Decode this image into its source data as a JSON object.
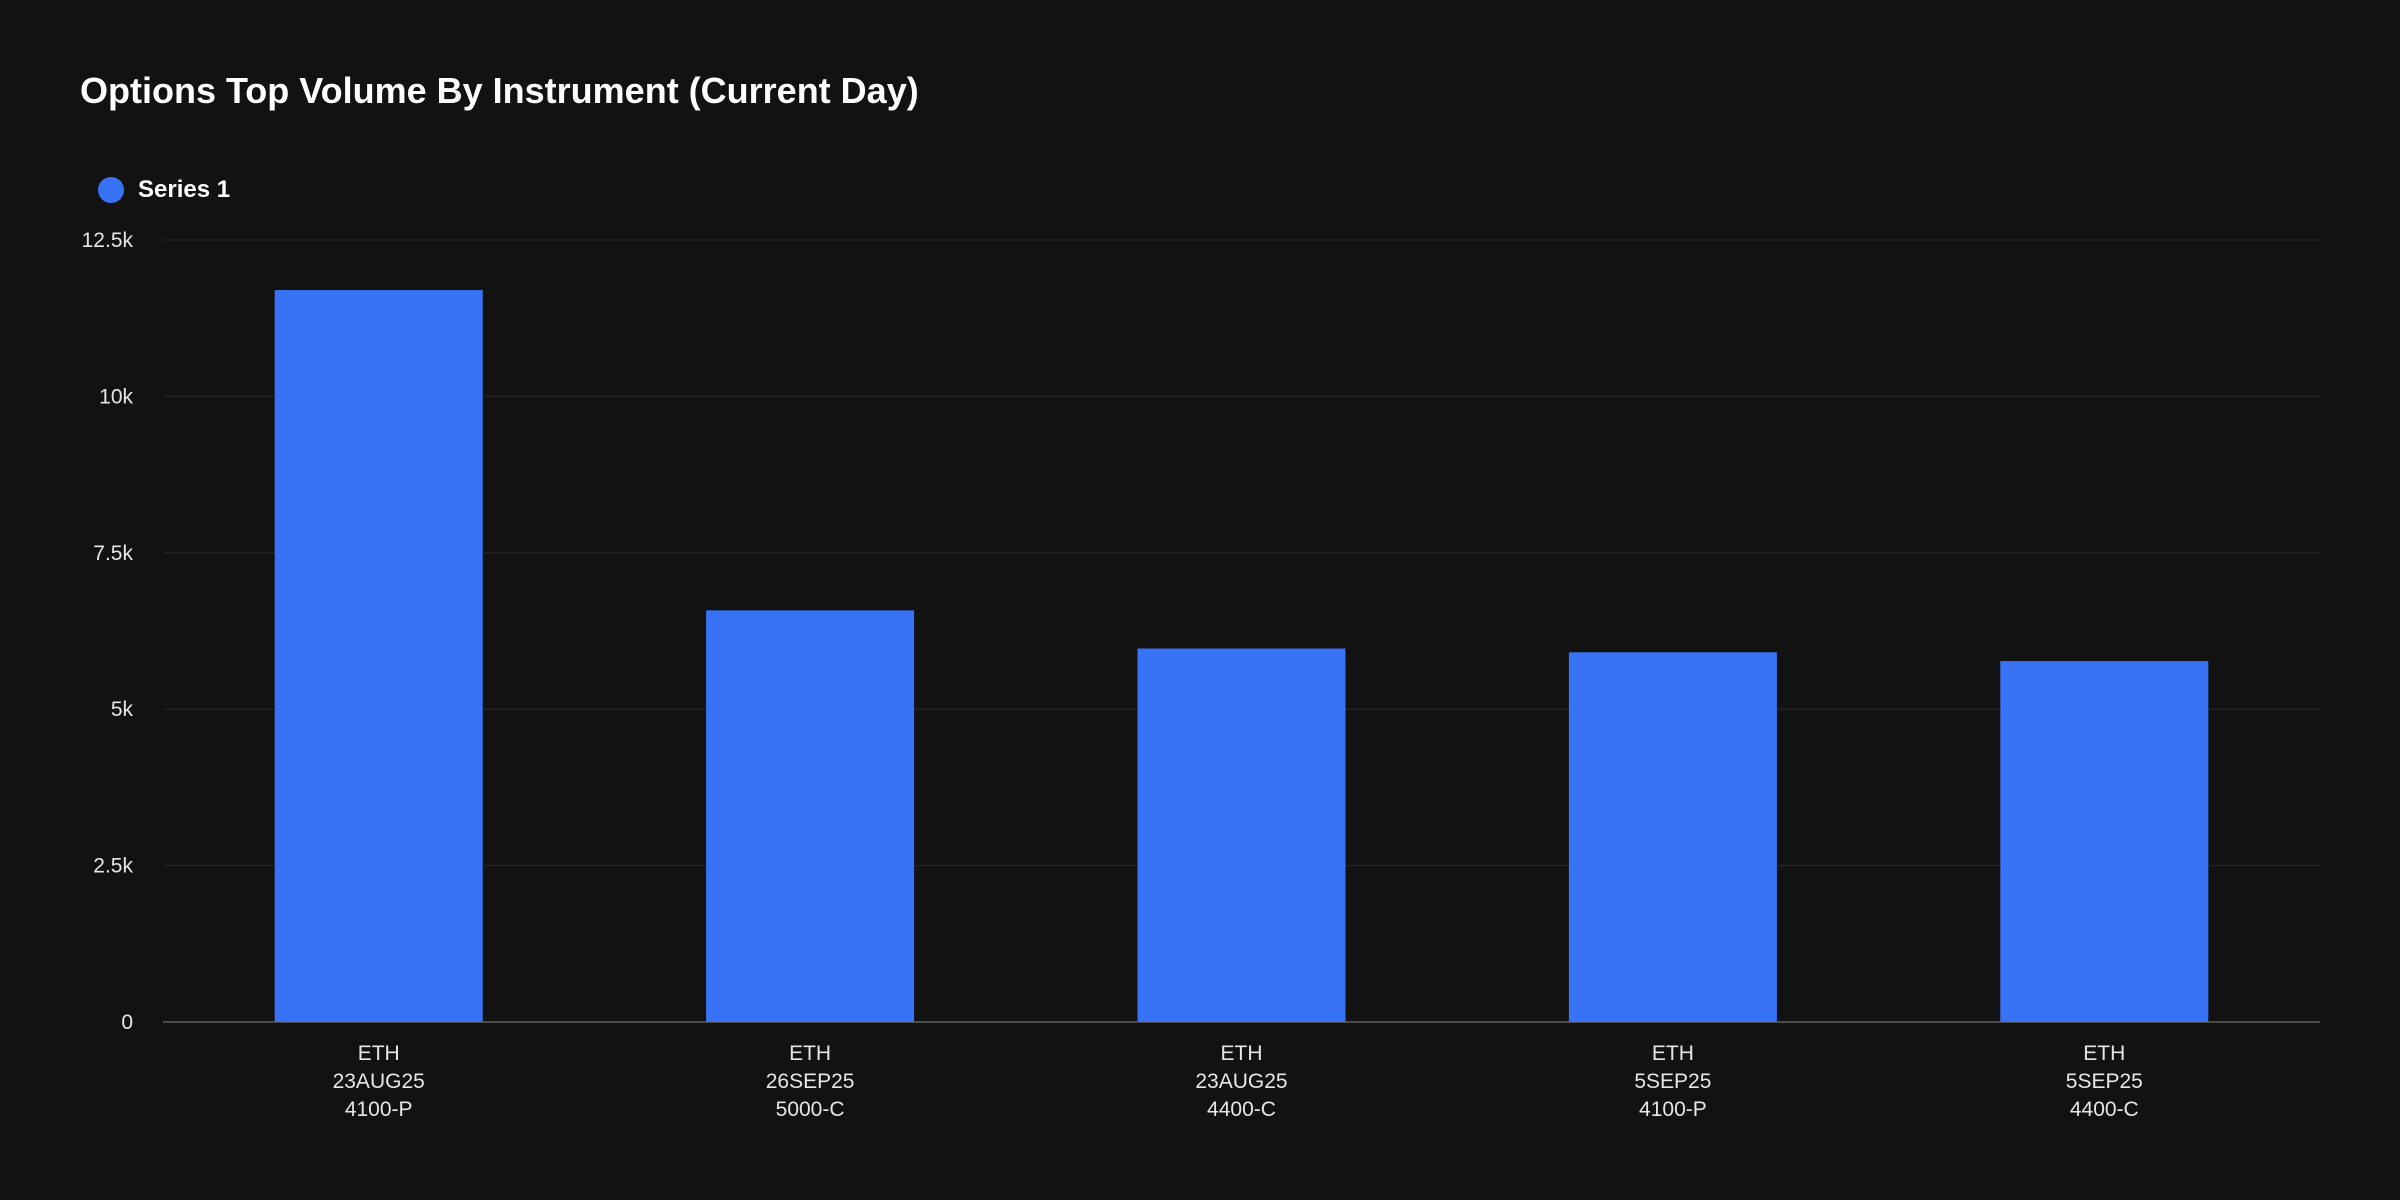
{
  "chart_data": {
    "type": "bar",
    "title": "Options Top Volume By Instrument (Current Day)",
    "xlabel": "",
    "ylabel": "",
    "ylim": [
      0,
      12500
    ],
    "yticks": [
      0,
      2500,
      5000,
      7500,
      10000,
      12500
    ],
    "ytick_labels": [
      "0",
      "2.5k",
      "5k",
      "7.5k",
      "10k",
      "12.5k"
    ],
    "grid": true,
    "legend_position": "top-left",
    "categories": [
      [
        "ETH",
        "23AUG25",
        "4100-P"
      ],
      [
        "ETH",
        "26SEP25",
        "5000-C"
      ],
      [
        "ETH",
        "23AUG25",
        "4400-C"
      ],
      [
        "ETH",
        "5SEP25",
        "4100-P"
      ],
      [
        "ETH",
        "5SEP25",
        "4400-C"
      ]
    ],
    "series": [
      {
        "name": "Series 1",
        "color": "#3873f5",
        "values": [
          11700,
          6580,
          5970,
          5910,
          5770
        ]
      }
    ]
  }
}
